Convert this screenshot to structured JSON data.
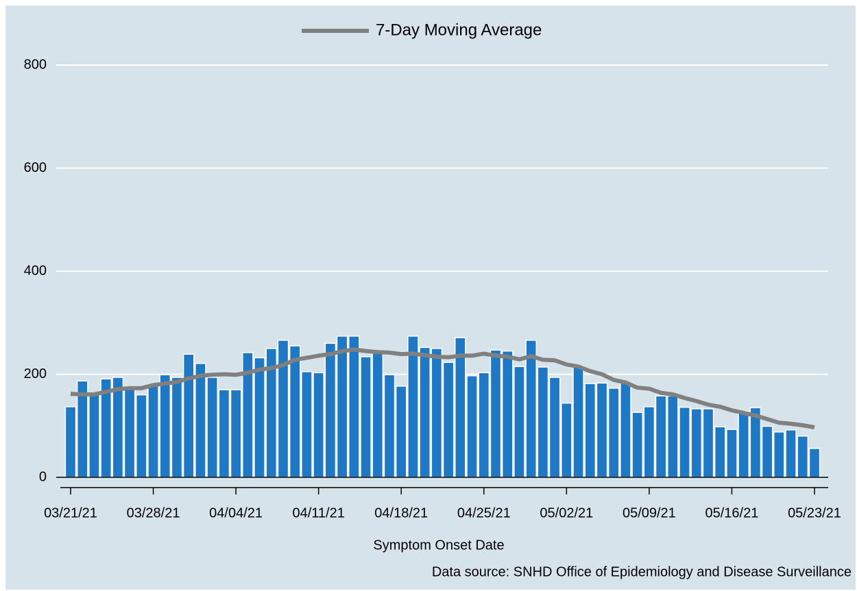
{
  "chart_data": {
    "type": "bar-line",
    "categories": [
      "03/21/21",
      null,
      null,
      null,
      null,
      null,
      null,
      "03/28/21",
      null,
      null,
      null,
      null,
      null,
      null,
      "04/04/21",
      null,
      null,
      null,
      null,
      null,
      null,
      "04/11/21",
      null,
      null,
      null,
      null,
      null,
      null,
      "04/18/21",
      null,
      null,
      null,
      null,
      null,
      null,
      "04/25/21",
      null,
      null,
      null,
      null,
      null,
      null,
      "05/02/21",
      null,
      null,
      null,
      null,
      null,
      null,
      "05/09/21",
      null,
      null,
      null,
      null,
      null,
      null,
      "05/16/21",
      null,
      null,
      null,
      null,
      null,
      null,
      "05/23/21"
    ],
    "series": [
      {
        "type": "bar",
        "color": "#1f78c4",
        "values": [
          137,
          187,
          162,
          191,
          194,
          175,
          160,
          178,
          199,
          194,
          239,
          221,
          194,
          170,
          170,
          242,
          232,
          250,
          266,
          255,
          205,
          203,
          260,
          274,
          274,
          234,
          243,
          199,
          177,
          274,
          252,
          250,
          223,
          271,
          197,
          203,
          247,
          245,
          215,
          266,
          214,
          194,
          144,
          215,
          182,
          183,
          173,
          183,
          126,
          137,
          158,
          158,
          136,
          133,
          133,
          98,
          93,
          128,
          135,
          99,
          88,
          92,
          80,
          56
        ]
      },
      {
        "type": "line",
        "name": "7-Day Moving Average",
        "color": "#808080",
        "values": [
          162,
          161,
          161,
          166,
          171,
          173,
          173,
          179,
          182,
          185,
          192,
          197,
          199,
          200,
          199,
          203,
          209,
          212,
          218,
          228,
          232,
          236,
          239,
          245,
          248,
          245,
          243,
          242,
          239,
          240,
          237,
          234,
          233,
          236,
          236,
          240,
          236,
          234,
          229,
          235,
          228,
          227,
          219,
          215,
          206,
          200,
          189,
          184,
          174,
          172,
          164,
          161,
          154,
          148,
          141,
          137,
          130,
          125,
          120,
          113,
          106,
          104,
          101,
          97
        ]
      }
    ],
    "ylim": [
      0,
      800
    ],
    "yticks": [
      0,
      200,
      400,
      600,
      800
    ],
    "grid": true,
    "legend": "top",
    "x_label": "Symptom Onset Date",
    "source": "Data source: SNHD Office of Epidemiology and Disease Surveillance"
  }
}
